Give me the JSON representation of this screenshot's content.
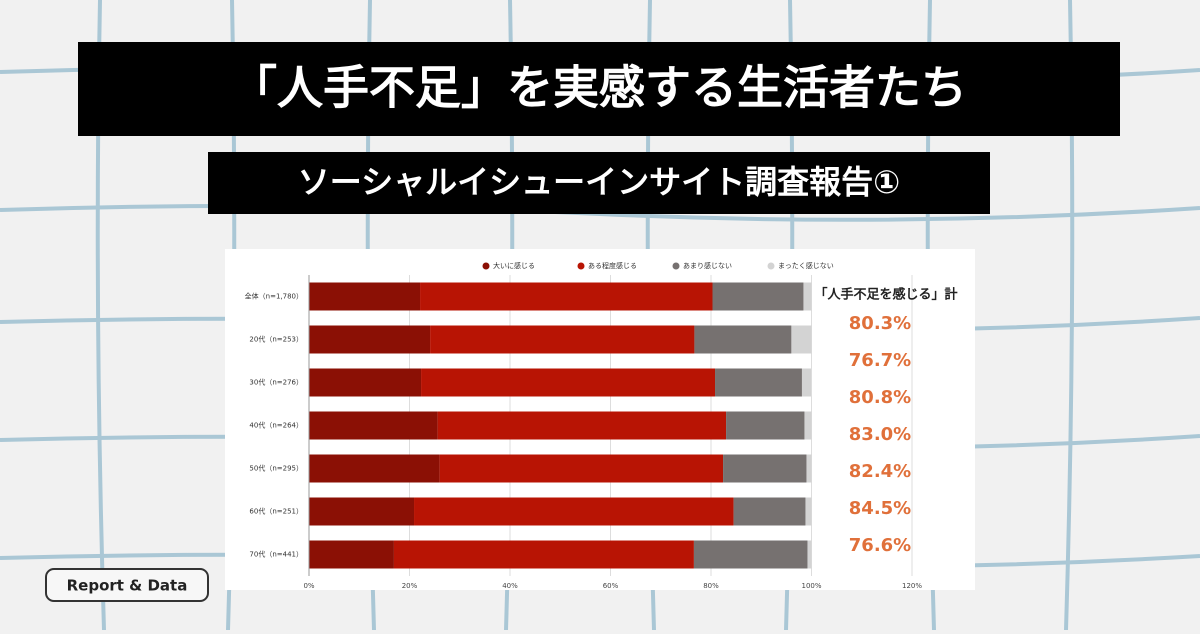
{
  "header": {
    "title": "「人手不足」を実感する生活者たち",
    "subtitle": "ソーシャルイシューインサイト調査報告①"
  },
  "badge": "Report & Data",
  "chart_data": {
    "type": "stacked-bar-horizontal",
    "categories": [
      "全体（n=1,780）",
      "20代（n=253）",
      "30代（n=276）",
      "40代（n=264）",
      "50代（n=295）",
      "60代（n=251）",
      "70代（n=441）"
    ],
    "series": [
      {
        "name": "大いに感じる",
        "color": "#8b1005",
        "values": [
          22.1,
          24.1,
          22.3,
          25.6,
          26.0,
          20.9,
          16.9
        ]
      },
      {
        "name": "ある程度感じる",
        "color": "#b81404",
        "values": [
          58.2,
          52.6,
          58.5,
          57.4,
          56.4,
          63.6,
          59.7
        ]
      },
      {
        "name": "あまり感じない",
        "color": "#767170",
        "values": [
          18.1,
          19.3,
          17.3,
          15.6,
          16.6,
          14.3,
          22.6
        ]
      },
      {
        "name": "まったく感じない",
        "color": "#d3d3d3",
        "values": [
          1.6,
          4.0,
          1.8,
          1.4,
          1.0,
          1.2,
          0.8
        ]
      }
    ],
    "xlim": [
      0,
      120
    ],
    "xticks": [
      {
        "value": 0,
        "label": "0%"
      },
      {
        "value": 20,
        "label": "20%"
      },
      {
        "value": 40,
        "label": "40%"
      },
      {
        "value": 60,
        "label": "60%"
      },
      {
        "value": 80,
        "label": "80%"
      },
      {
        "value": 100,
        "label": "100%"
      },
      {
        "value": 120,
        "label": "120%"
      }
    ],
    "grid": true,
    "legend": "top",
    "totals_title": "「人手不足を感じる」計",
    "totals_color": "#e0703a",
    "totals": {
      "values": [
        80.3,
        76.7,
        80.8,
        83.0,
        82.4,
        84.5,
        76.6
      ],
      "value_labels": [
        "80.3%",
        "76.7%",
        "80.8%",
        "83.0%",
        "82.4%",
        "84.5%",
        "76.6%"
      ]
    }
  }
}
